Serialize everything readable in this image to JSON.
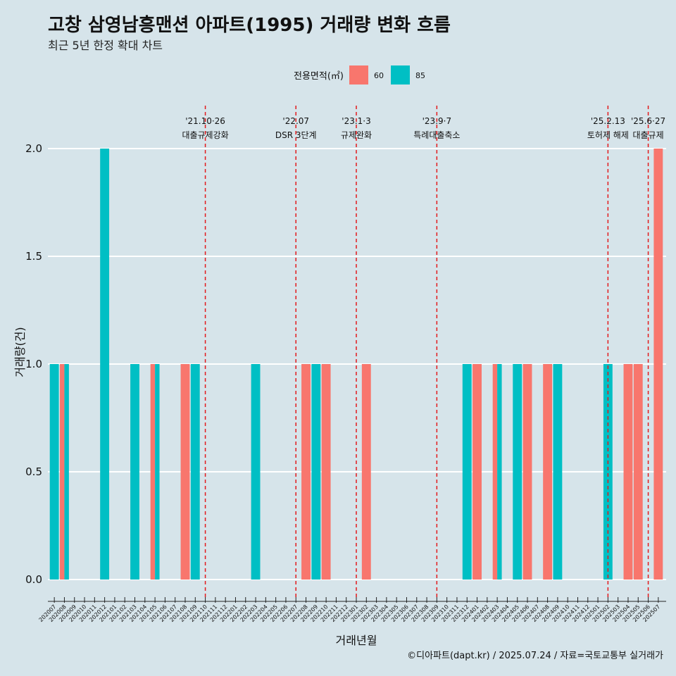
{
  "title": "고창 삼영남흥맨션 아파트(1995) 거래량 변화 흐름",
  "subtitle": "최근 5년 한정 확대 차트",
  "caption": "©디아파트(dapt.kr) / 2025.07.24 / 자료=국토교통부 실거래가",
  "colors": {
    "s60": "#f8766d",
    "s85": "#00bfc4",
    "background": "#d6e4ea",
    "grid": "#ffffff",
    "event_line": "#e31a1c"
  },
  "chart_data": {
    "type": "bar",
    "xlabel": "거래년월",
    "ylabel": "거래량(건)",
    "ylim": [
      0,
      2
    ],
    "yticks": [
      "0.0",
      "0.5",
      "1.0",
      "1.5",
      "2.0"
    ],
    "grid": true,
    "legend": {
      "title": "전용면적(㎡)",
      "position": "top"
    },
    "categories": [
      "202007",
      "202008",
      "202009",
      "202010",
      "202011",
      "202012",
      "202101",
      "202102",
      "202103",
      "202104",
      "202105",
      "202106",
      "202107",
      "202108",
      "202109",
      "202110",
      "202111",
      "202112",
      "202201",
      "202202",
      "202203",
      "202204",
      "202205",
      "202206",
      "202207",
      "202208",
      "202209",
      "202210",
      "202211",
      "202212",
      "202301",
      "202302",
      "202303",
      "202304",
      "202305",
      "202306",
      "202307",
      "202308",
      "202309",
      "202310",
      "202311",
      "202312",
      "202401",
      "202402",
      "202403",
      "202404",
      "202405",
      "202406",
      "202407",
      "202408",
      "202409",
      "202410",
      "202411",
      "202412",
      "202501",
      "202502",
      "202503",
      "202504",
      "202505",
      "202506",
      "202507"
    ],
    "series": [
      {
        "name": "60",
        "color": "#f8766d",
        "values": [
          0,
          1,
          0,
          0,
          0,
          0,
          0,
          0,
          0,
          0,
          1,
          0,
          0,
          1,
          0,
          0,
          0,
          0,
          0,
          0,
          0,
          0,
          0,
          0,
          0,
          1,
          0,
          1,
          0,
          0,
          0,
          1,
          0,
          0,
          0,
          0,
          0,
          0,
          0,
          0,
          0,
          0,
          1,
          0,
          1,
          0,
          0,
          1,
          0,
          1,
          0,
          0,
          0,
          0,
          0,
          0,
          0,
          1,
          1,
          0,
          2
        ]
      },
      {
        "name": "85",
        "color": "#00bfc4",
        "values": [
          1,
          1,
          0,
          0,
          0,
          2,
          0,
          0,
          1,
          0,
          1,
          0,
          0,
          0,
          1,
          0,
          0,
          0,
          0,
          0,
          1,
          0,
          0,
          0,
          0,
          0,
          1,
          0,
          0,
          0,
          0,
          0,
          0,
          0,
          0,
          0,
          0,
          0,
          0,
          0,
          0,
          1,
          0,
          0,
          1,
          0,
          1,
          0,
          0,
          0,
          1,
          0,
          0,
          0,
          0,
          1,
          0,
          0,
          0,
          0,
          0
        ]
      }
    ],
    "events": [
      {
        "x": "202110",
        "date": "'21.10·26",
        "label": "대출규제강화"
      },
      {
        "x": "202207",
        "date": "'22.07",
        "label": "DSR 3단계"
      },
      {
        "x": "202301",
        "date": "'23.1·3",
        "label": "규제완화"
      },
      {
        "x": "202309",
        "date": "'23.9·7",
        "label": "특례대출축소"
      },
      {
        "x": "202502",
        "date": "'25.2.13",
        "label": "토허제 해제"
      },
      {
        "x": "202506",
        "date": "'25.6·27",
        "label": "대출규제"
      }
    ]
  }
}
